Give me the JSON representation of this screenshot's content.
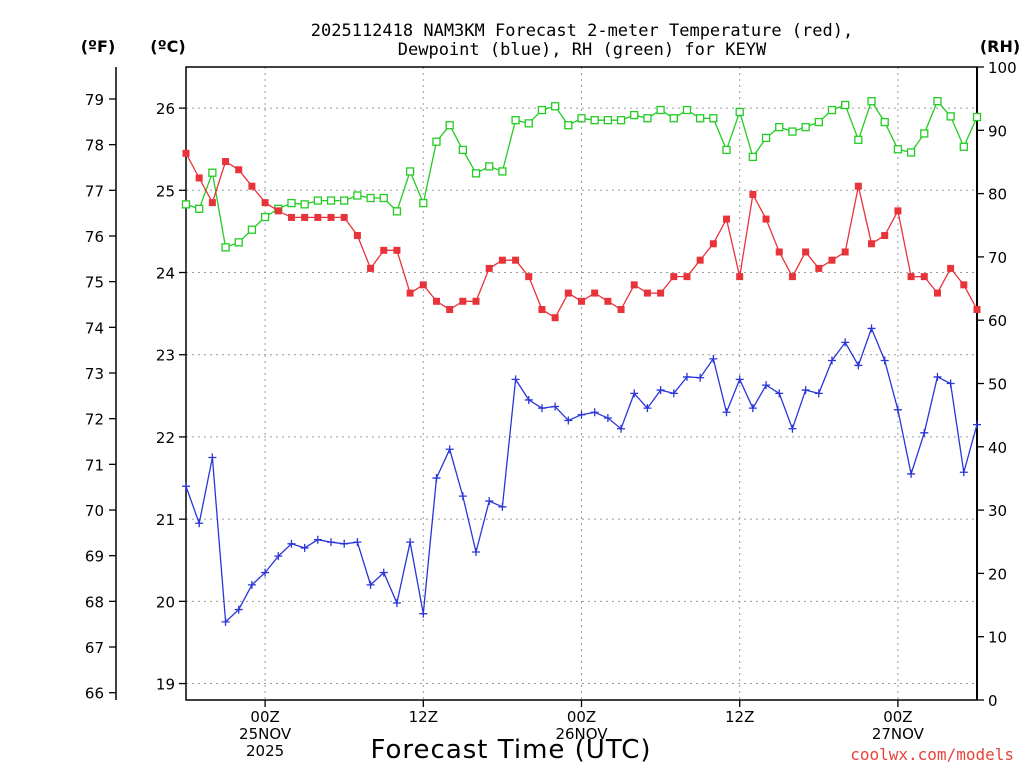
{
  "chart_data": {
    "type": "line",
    "title_lines": [
      "2025112418 NAM3KM Forecast 2-meter Temperature (red),",
      "Dewpoint (blue), RH (green) for KEYW"
    ],
    "xlabel": "Forecast Time (UTC)",
    "credit": "coolwx.com/models",
    "axis_units": {
      "fahrenheit": "(ºF)",
      "celsius": "(ºC)",
      "rh": "(RH)"
    },
    "x_range_hours": [
      0,
      60
    ],
    "x_ticks": [
      {
        "hour": 6,
        "lines": [
          "00Z",
          "25NOV",
          "2025"
        ]
      },
      {
        "hour": 18,
        "lines": [
          "12Z"
        ]
      },
      {
        "hour": 30,
        "lines": [
          "00Z",
          "26NOV"
        ]
      },
      {
        "hour": 42,
        "lines": [
          "12Z"
        ]
      },
      {
        "hour": 54,
        "lines": [
          "00Z",
          "27NOV"
        ]
      }
    ],
    "celsius_range": [
      18.8,
      26.5
    ],
    "celsius_ticks": [
      19,
      20,
      21,
      22,
      23,
      24,
      25,
      26
    ],
    "fahrenheit_ticks": [
      66,
      67,
      68,
      69,
      70,
      71,
      72,
      73,
      74,
      75,
      76,
      77,
      78,
      79
    ],
    "rh_range": [
      0,
      100
    ],
    "rh_ticks": [
      0,
      10,
      20,
      30,
      40,
      50,
      60,
      70,
      80,
      90,
      100
    ],
    "hours": [
      0,
      1,
      2,
      3,
      4,
      5,
      6,
      7,
      8,
      9,
      10,
      11,
      12,
      13,
      14,
      15,
      16,
      17,
      18,
      19,
      20,
      21,
      22,
      23,
      24,
      25,
      26,
      27,
      28,
      29,
      30,
      31,
      32,
      33,
      34,
      35,
      36,
      37,
      38,
      39,
      40,
      41,
      42,
      43,
      44,
      45,
      46,
      47,
      48,
      49,
      50,
      51,
      52,
      53,
      54,
      55,
      56,
      57,
      58,
      59,
      60
    ],
    "series": [
      {
        "name": "Temperature",
        "color": "#e8333a",
        "marker": "filled-square",
        "axis": "celsius",
        "values": [
          25.45,
          25.15,
          24.85,
          25.35,
          25.25,
          25.05,
          24.85,
          24.75,
          24.67,
          24.67,
          24.67,
          24.67,
          24.67,
          24.45,
          24.05,
          24.27,
          24.27,
          23.75,
          23.85,
          23.65,
          23.55,
          23.65,
          23.65,
          24.05,
          24.15,
          24.15,
          23.95,
          23.55,
          23.45,
          23.75,
          23.65,
          23.75,
          23.65,
          23.55,
          23.85,
          23.75,
          23.75,
          23.95,
          23.95,
          24.15,
          24.35,
          24.65,
          23.95,
          24.95,
          24.65,
          24.25,
          23.95,
          24.25,
          24.05,
          24.15,
          24.25,
          25.05,
          24.35,
          24.45,
          24.75,
          23.95,
          23.95,
          23.75,
          24.05,
          23.85,
          23.55
        ]
      },
      {
        "name": "Dewpoint",
        "color": "#2a35d8",
        "marker": "plus",
        "axis": "celsius",
        "values": [
          21.4,
          20.95,
          21.75,
          19.75,
          19.9,
          20.2,
          20.35,
          20.55,
          20.7,
          20.65,
          20.75,
          20.72,
          20.7,
          20.72,
          20.2,
          20.35,
          19.98,
          20.72,
          19.85,
          21.5,
          21.85,
          21.28,
          20.6,
          21.22,
          21.15,
          22.7,
          22.45,
          22.35,
          22.37,
          22.2,
          22.27,
          22.3,
          22.23,
          22.1,
          22.53,
          22.35,
          22.57,
          22.53,
          22.73,
          22.72,
          22.95,
          22.3,
          22.7,
          22.35,
          22.63,
          22.53,
          22.1,
          22.57,
          22.53,
          22.93,
          23.15,
          22.87,
          23.32,
          22.93,
          22.33,
          21.55,
          22.05,
          22.73,
          22.65,
          21.57,
          22.15
        ]
      },
      {
        "name": "RH",
        "color": "#22cc22",
        "marker": "open-square",
        "axis": "rh",
        "values": [
          78.3,
          77.6,
          83.3,
          71.5,
          72.3,
          74.3,
          76.3,
          77.6,
          78.5,
          78.3,
          78.9,
          78.9,
          78.9,
          79.7,
          79.3,
          79.3,
          77.2,
          83.5,
          78.5,
          88.2,
          90.8,
          86.9,
          83.2,
          84.3,
          83.5,
          91.6,
          91.1,
          93.2,
          93.8,
          90.8,
          91.9,
          91.6,
          91.6,
          91.6,
          92.4,
          91.9,
          93.2,
          91.9,
          93.2,
          91.9,
          91.9,
          86.9,
          92.9,
          85.8,
          88.8,
          90.5,
          89.8,
          90.5,
          91.3,
          93.2,
          94.0,
          88.5,
          94.6,
          91.3,
          87.0,
          86.5,
          89.5,
          94.6,
          92.2,
          87.4,
          92.1
        ]
      }
    ]
  }
}
